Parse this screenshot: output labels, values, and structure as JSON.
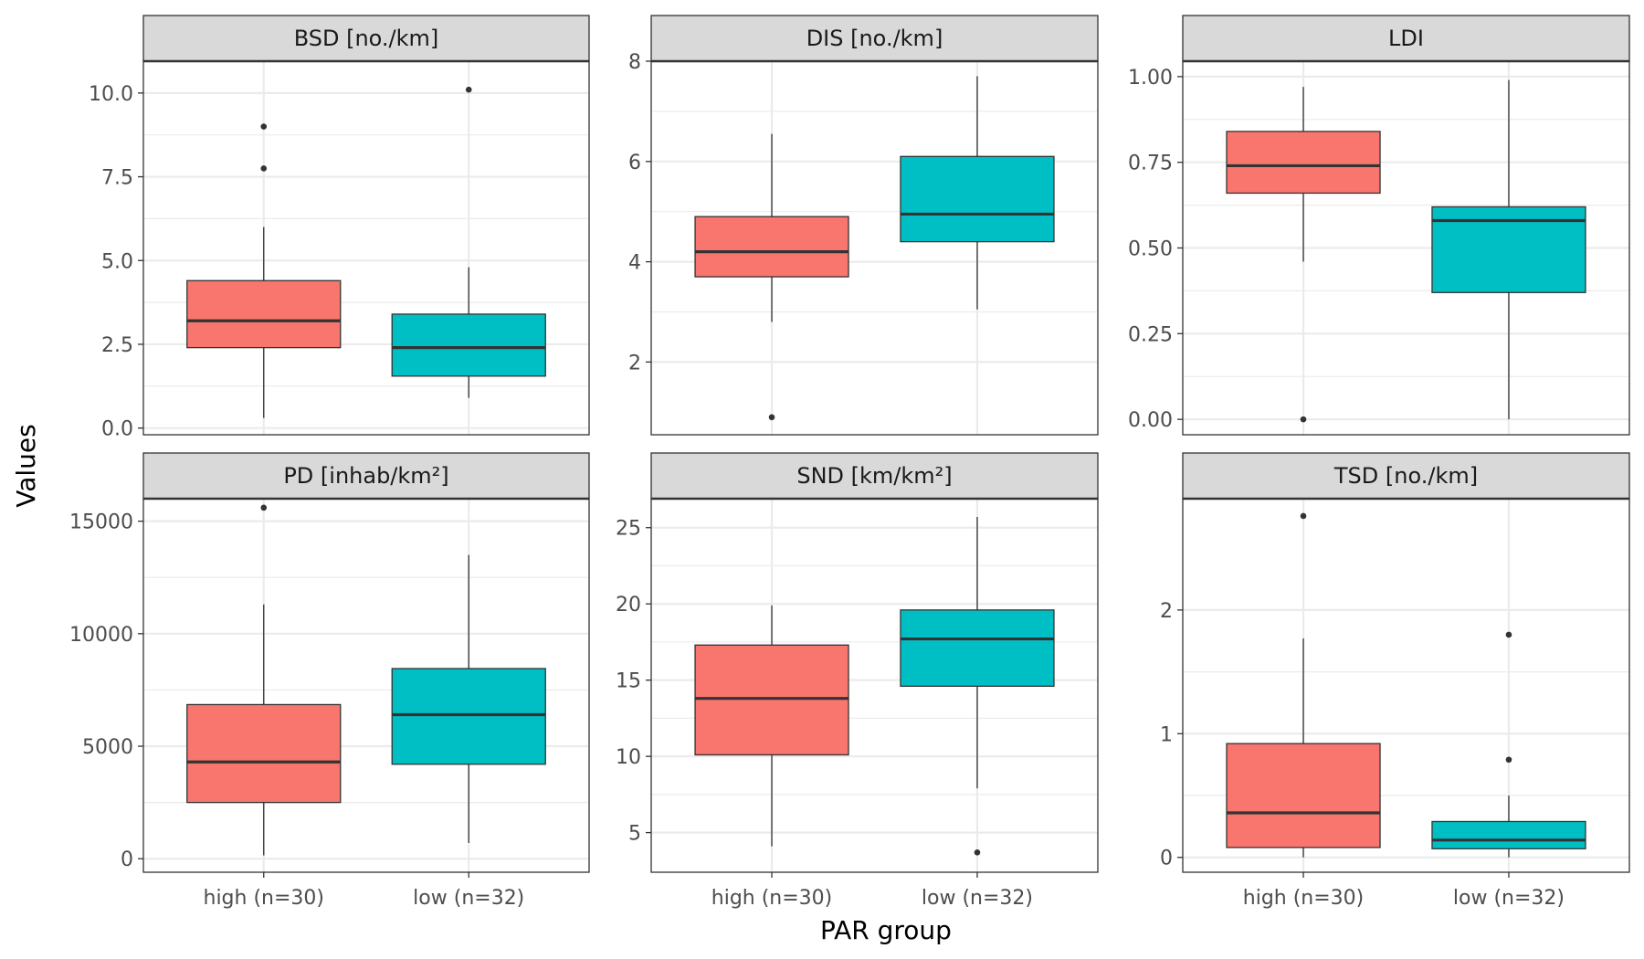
{
  "figure": {
    "xlabel": "PAR group",
    "ylabel": "Values"
  },
  "colors": {
    "high": "#F8766D",
    "low": "#00BFC4",
    "strip_bg": "#D9D9D9",
    "grid": "#EBEBEB",
    "panel_border": "#333333",
    "outlier": "#333333"
  },
  "chart_data": [
    {
      "type": "box",
      "title": "BSD [no./km]",
      "categories": [
        "high (n=30)",
        "low (n=32)"
      ],
      "ylim": [
        -0.2,
        10.95
      ],
      "yticks": [
        0.0,
        2.5,
        5.0,
        7.5,
        10.0
      ],
      "ytick_labels": [
        "0.0",
        "2.5",
        "5.0",
        "7.5",
        "10.0"
      ],
      "boxes": [
        {
          "group": "high (n=30)",
          "whisker_low": 0.3,
          "q1": 2.4,
          "median": 3.2,
          "q3": 4.4,
          "whisker_high": 6.0,
          "outliers": [
            7.75,
            9.0
          ]
        },
        {
          "group": "low (n=32)",
          "whisker_low": 0.9,
          "q1": 1.55,
          "median": 2.4,
          "q3": 3.4,
          "whisker_high": 4.8,
          "outliers": [
            10.1
          ]
        }
      ]
    },
    {
      "type": "box",
      "title": "DIS [no./km]",
      "categories": [
        "high (n=30)",
        "low (n=32)"
      ],
      "ylim": [
        0.55,
        8.0
      ],
      "yticks": [
        2,
        4,
        6,
        8
      ],
      "ytick_labels": [
        "2",
        "4",
        "6",
        "8"
      ],
      "boxes": [
        {
          "group": "high (n=30)",
          "whisker_low": 2.8,
          "q1": 3.7,
          "median": 4.2,
          "q3": 4.9,
          "whisker_high": 6.55,
          "outliers": [
            0.9
          ]
        },
        {
          "group": "low (n=32)",
          "whisker_low": 3.05,
          "q1": 4.4,
          "median": 4.95,
          "q3": 6.1,
          "whisker_high": 7.7,
          "outliers": []
        }
      ]
    },
    {
      "type": "box",
      "title": "LDI",
      "categories": [
        "high (n=30)",
        "low (n=32)"
      ],
      "ylim": [
        -0.045,
        1.045
      ],
      "yticks": [
        0.0,
        0.25,
        0.5,
        0.75,
        1.0
      ],
      "ytick_labels": [
        "0.00",
        "0.25",
        "0.50",
        "0.75",
        "1.00"
      ],
      "boxes": [
        {
          "group": "high (n=30)",
          "whisker_low": 0.46,
          "q1": 0.66,
          "median": 0.74,
          "q3": 0.84,
          "whisker_high": 0.97,
          "outliers": [
            0.0
          ]
        },
        {
          "group": "low (n=32)",
          "whisker_low": 0.0,
          "q1": 0.37,
          "median": 0.58,
          "q3": 0.62,
          "whisker_high": 0.99,
          "outliers": []
        }
      ]
    },
    {
      "type": "box",
      "title": "PD [inhab/km²]",
      "categories": [
        "high (n=30)",
        "low (n=32)"
      ],
      "ylim": [
        -600,
        16000
      ],
      "yticks": [
        0,
        5000,
        10000,
        15000
      ],
      "ytick_labels": [
        "0",
        "5000",
        "10000",
        "15000"
      ],
      "boxes": [
        {
          "group": "high (n=30)",
          "whisker_low": 150,
          "q1": 2500,
          "median": 4300,
          "q3": 6850,
          "whisker_high": 11300,
          "outliers": [
            15600
          ]
        },
        {
          "group": "low (n=32)",
          "whisker_low": 700,
          "q1": 4200,
          "median": 6400,
          "q3": 8450,
          "whisker_high": 13500,
          "outliers": []
        }
      ]
    },
    {
      "type": "box",
      "title": "SND [km/km²]",
      "categories": [
        "high (n=30)",
        "low (n=32)"
      ],
      "ylim": [
        2.4,
        26.9
      ],
      "yticks": [
        5,
        10,
        15,
        20,
        25
      ],
      "ytick_labels": [
        "5",
        "10",
        "15",
        "20",
        "25"
      ],
      "boxes": [
        {
          "group": "high (n=30)",
          "whisker_low": 4.1,
          "q1": 10.1,
          "median": 13.8,
          "q3": 17.3,
          "whisker_high": 19.9,
          "outliers": []
        },
        {
          "group": "low (n=32)",
          "whisker_low": 7.9,
          "q1": 14.6,
          "median": 17.7,
          "q3": 19.6,
          "whisker_high": 25.7,
          "outliers": [
            3.7
          ]
        }
      ]
    },
    {
      "type": "box",
      "title": "TSD [no./km]",
      "categories": [
        "high (n=30)",
        "low (n=32)"
      ],
      "ylim": [
        -0.12,
        2.9
      ],
      "yticks": [
        0,
        1,
        2
      ],
      "ytick_labels": [
        "0",
        "1",
        "2"
      ],
      "boxes": [
        {
          "group": "high (n=30)",
          "whisker_low": 0.0,
          "q1": 0.08,
          "median": 0.36,
          "q3": 0.92,
          "whisker_high": 1.77,
          "outliers": [
            2.76
          ]
        },
        {
          "group": "low (n=32)",
          "whisker_low": 0.0,
          "q1": 0.07,
          "median": 0.14,
          "q3": 0.29,
          "whisker_high": 0.5,
          "outliers": [
            0.79,
            1.8
          ]
        }
      ]
    }
  ]
}
